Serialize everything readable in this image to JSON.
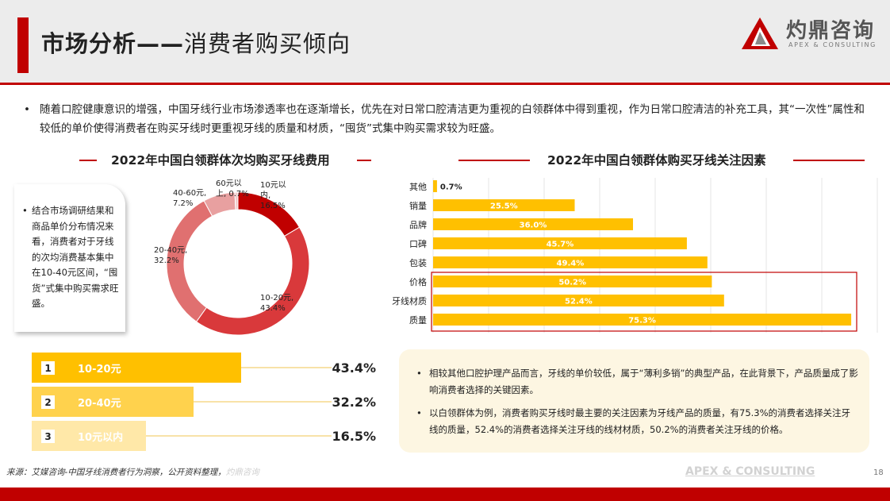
{
  "header": {
    "title_main": "市场分析——",
    "title_sub": "消费者购买倾向",
    "logo_cn": "灼鼎咨询",
    "logo_en": "APEX & CONSULTING"
  },
  "intro": "随着口腔健康意识的增强，中国牙线行业市场渗透率也在逐渐增长，优先在对日常口腔清洁更为重视的白领群体中得到重视，作为日常口腔清洁的补充工具，其“一次性”属性和较低的单价使得消费者在购买牙线时更重视牙线的质量和材质，“囤货”式集中购买需求较为旺盛。",
  "left_note": "结合市场调研结果和商品单价分布情况来看，消费者对于牙线的次均消费基本集中在10-40元区间，“囤货”式集中购买需求旺盛。",
  "rank_list": [
    {
      "rank": "1",
      "label": "10-20元",
      "value": "43.4%"
    },
    {
      "rank": "2",
      "label": "20-40元",
      "value": "32.2%"
    },
    {
      "rank": "3",
      "label": "10元以内",
      "value": "16.5%"
    }
  ],
  "right_notes": [
    "相较其他口腔护理产品而言，牙线的单价较低，属于“薄利多销”的典型产品，在此背景下，产品质量成了影响消费者选择的关键因素。",
    "以白领群体为例，消费者购买牙线时最主要的关注因素为牙线产品的质量，有75.3%的消费者选择关注牙线的质量，52.4%的消费者选择关注牙线的线材材质，50.2%的消费者关注牙线的价格。"
  ],
  "footer": {
    "source": "来源：艾媒咨询-中国牙线消费者行为洞察，公开资料整理，",
    "source_faint": "灼鼎咨询",
    "brand": "APEX & CONSULTING",
    "page": "18"
  },
  "colors": {
    "accent": "#c00000",
    "bar_gold": "#ffc000",
    "donut": [
      "#c00000",
      "#d9393b",
      "#e07070",
      "#e8a0a0",
      "#f2cccc"
    ]
  },
  "chart_data": [
    {
      "type": "pie",
      "title": "2022年中国白领群体次均购买牙线费用",
      "labels": [
        "10元以内",
        "10-20元",
        "20-40元",
        "40-60元",
        "60元以上"
      ],
      "label_lines": [
        [
          "10元以",
          "内,",
          "16.5%"
        ],
        [
          "10-20元,",
          "43.4%"
        ],
        [
          "20-40元,",
          "32.2%"
        ],
        [
          "40-60元,",
          "7.2%"
        ],
        [
          "60元以",
          "上, 0.7%"
        ]
      ],
      "values": [
        16.5,
        43.4,
        32.2,
        7.2,
        0.7
      ],
      "donut": true
    },
    {
      "type": "bar",
      "orientation": "horizontal",
      "title": "2022年中国白领群体购买牙线关注因素",
      "categories": [
        "其他",
        "销量",
        "品牌",
        "口碑",
        "包装",
        "价格",
        "牙线材质",
        "质量"
      ],
      "values": [
        0.7,
        25.5,
        36.0,
        45.7,
        49.4,
        50.2,
        52.4,
        75.3
      ],
      "value_labels": [
        "0.7%",
        "25.5%",
        "36.0%",
        "45.7%",
        "49.4%",
        "50.2%",
        "52.4%",
        "75.3%"
      ],
      "unit": "%",
      "xlim": [
        0,
        80
      ],
      "highlighted": [
        "价格",
        "牙线材质",
        "质量"
      ]
    }
  ]
}
